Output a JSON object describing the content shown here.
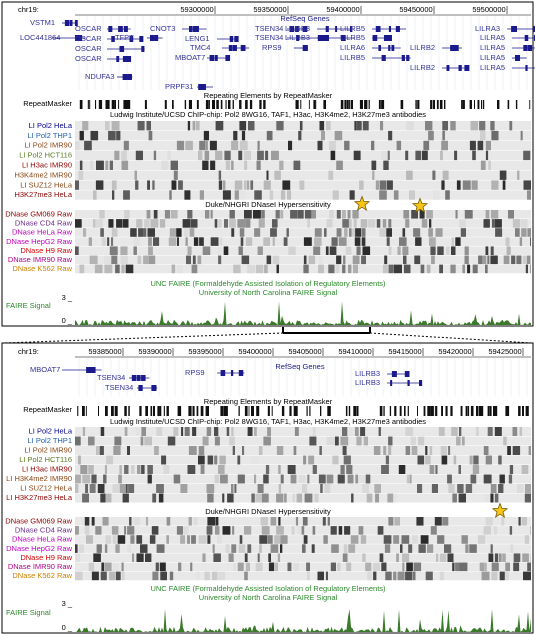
{
  "panel_1": {
    "ruler": {
      "chrom": "chr19:",
      "ticks": [
        "59300000",
        "59350000",
        "59400000",
        "59450000",
        "59500000"
      ]
    },
    "genes": {
      "track_title": "RefSeq Genes",
      "labels": [
        "VSTM1",
        "LOC441864",
        "OSCAR",
        "OSCAR",
        "OSCAR",
        "OSCAR",
        "TFPT",
        "NDUFA3",
        "CNOT3",
        "LENG1",
        "TMC4",
        "MBOAT7",
        "PRPF31",
        "TSEN34",
        "TSEN34",
        "RPS9",
        "LILRB3",
        "LILRB3",
        "LILRA6",
        "LILRB5",
        "LILRB5",
        "LILRB5",
        "LILRB2",
        "LILRB2",
        "LILRA3",
        "LILRA5",
        "LILRA5",
        "LILRA5",
        "LILRA5"
      ]
    },
    "repeats": {
      "title": "Repeating Elements by RepeatMasker",
      "label": "RepeatMasker"
    },
    "chip": {
      "title": "Ludwig Institute/UCSD ChIP-chip: Pol2 8WG16, TAF1, H3ac, H3K4me2, H3K27me3 antibodies",
      "tracks": [
        "LI Pol2 HeLa",
        "LI Pol2 THP1",
        "LI Pol2 IMR90",
        "LI Pol2 HCT116",
        "LI H3ac IMR90",
        "H3K4me2 IMR90",
        "LI SUZ12 HeLa",
        "H3K27me3 HeLa"
      ]
    },
    "dnase": {
      "title": "Duke/NHGRI DNaseI Hypersensitivity",
      "tracks": [
        "DNase GM069 Raw",
        "DNase CD4 Raw",
        "DNase HeLa Raw",
        "DNase HepG2 Raw",
        "DNase H9 Raw",
        "DNase IMR90 Raw",
        "DNase K562 Raw"
      ]
    },
    "faire": {
      "title": "UNC FAIRE (Formaldehyde Assisted Isolation of Regulatory Elements)",
      "subtitle": "University of North Carolina FAIRE Signal",
      "label": "FAIRE Signal",
      "max": "3 _",
      "min": "0 _"
    }
  },
  "panel_2": {
    "ruler": {
      "chrom": "chr19:",
      "ticks": [
        "59385000",
        "59390000",
        "59395000",
        "59400000",
        "59405000",
        "59410000",
        "59415000",
        "59420000",
        "59425000"
      ]
    },
    "genes": {
      "track_title": "RefSeq Genes",
      "labels": [
        "MBOAT7",
        "TSEN34",
        "TSEN34",
        "RPS9",
        "LILRB3",
        "LILRB3"
      ]
    },
    "repeats": {
      "title": "Repeating Elements by RepeatMasker",
      "label": "RepeatMasker"
    },
    "chip": {
      "title": "Ludwig Institute/UCSD ChIP-chip: Pol2 8WG16, TAF1, H3ac, H3K4me2, H3K27me3 antibodies",
      "tracks": [
        "LI Pol2 HeLa",
        "LI Pol2 THP1",
        "LI Pol2 IMR90",
        "LI Pol2 HCT116",
        "LI H3ac IMR90",
        "LI H3K4me2 IMR90",
        "LI SUZ12 HeLa",
        "LI H3K27me3 HeLa"
      ]
    },
    "dnase": {
      "title": "Duke/NHGRI DNaseI Hypersensitivity",
      "tracks": [
        "DNase GM069 Raw",
        "DNase CD4 Raw",
        "DNase HeLa Raw",
        "DNase HepG2 Raw",
        "DNase H9 Raw",
        "DNase IMR90 Raw",
        "DNase K562 Raw"
      ]
    },
    "faire": {
      "title": "UNC FAIRE (Formaldehyde Assisted Isolation of Regulatory Elements)",
      "subtitle": "University of North Carolina FAIRE Signal",
      "label": "FAIRE Signal",
      "max": "3 _",
      "min": "0 _"
    }
  }
}
